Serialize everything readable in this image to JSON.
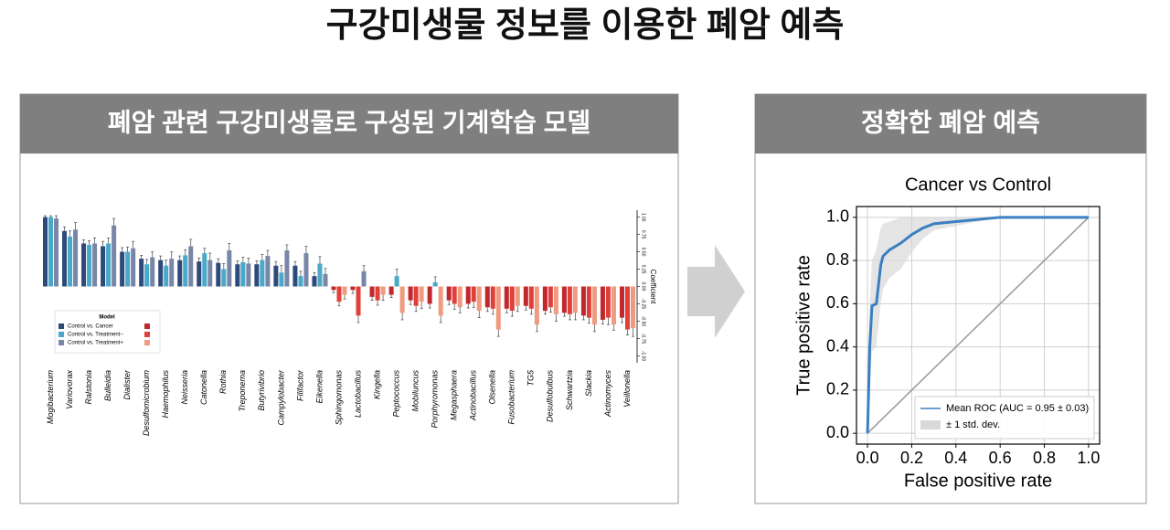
{
  "title": "구강미생물 정보를 이용한 폐암 예측",
  "left_panel_title": "폐암 관련 구강미생물로 구성된 기계학습 모델",
  "right_panel_title": "정확한 폐암 예측",
  "chart_data": [
    {
      "type": "bar",
      "y_label": "Coefficient",
      "y_axis_side": "right",
      "legend_title": "Model",
      "legend": "lower left",
      "categories": [
        "Mogibacterium",
        "Variovorax",
        "Ralstonia",
        "Bulleidia",
        "Dialister",
        "Desulfomicrobium",
        "Haemophilus",
        "Neisseria",
        "Catonella",
        "Rothia",
        "Treponema",
        "Butyrivibrio",
        "Campylobacter",
        "Filifactor",
        "Eikenella",
        "Sphingomonas",
        "Lactobacillus",
        "Kingella",
        "Peptococcus",
        "Mobiluncus",
        "Porphyromonas",
        "Megasphaera",
        "Actinobacillus",
        "Olsenella",
        "Fusobacterium",
        "TG5",
        "Desulfobulbus",
        "Schwartzia",
        "Slackia",
        "Actinomyces",
        "Veillonella"
      ],
      "series": [
        {
          "name": "Control vs. Cancer",
          "color": "#2e4a7a",
          "negative_color": "#c0282d",
          "values": [
            1.0,
            0.8,
            0.62,
            0.58,
            0.5,
            0.4,
            0.38,
            0.38,
            0.36,
            0.34,
            0.32,
            0.32,
            0.3,
            0.3,
            0.15,
            -0.05,
            -0.05,
            -0.15,
            -0.12,
            -0.2,
            -0.25,
            -0.2,
            -0.25,
            -0.3,
            -0.32,
            -0.28,
            -0.35,
            -0.38,
            -0.42,
            -0.48,
            -0.45
          ],
          "errors": [
            0.02,
            0.06,
            0.05,
            0.07,
            0.06,
            0.05,
            0.06,
            0.06,
            0.05,
            0.06,
            0.05,
            0.05,
            0.06,
            0.06,
            0.05,
            0.04,
            0.05,
            0.05,
            0.04,
            0.06,
            0.06,
            0.06,
            0.06,
            0.06,
            0.06,
            0.06,
            0.05,
            0.05,
            0.06,
            0.06,
            0.07
          ]
        },
        {
          "name": "Control vs. Treatment−",
          "color": "#4aa8c8",
          "negative_color": "#e0403a",
          "values": [
            1.0,
            0.72,
            0.6,
            0.62,
            0.5,
            0.32,
            0.3,
            0.45,
            0.48,
            0.25,
            0.35,
            0.38,
            0.2,
            0.15,
            0.33,
            -0.22,
            -0.42,
            -0.2,
            0.15,
            -0.28,
            0.06,
            -0.25,
            -0.22,
            -0.32,
            -0.35,
            -0.32,
            -0.3,
            -0.4,
            -0.45,
            -0.45,
            -0.62
          ],
          "errors": [
            0.02,
            0.08,
            0.06,
            0.08,
            0.07,
            0.07,
            0.08,
            0.08,
            0.07,
            0.08,
            0.07,
            0.08,
            0.1,
            0.07,
            0.1,
            0.06,
            0.1,
            0.07,
            0.1,
            0.08,
            0.08,
            0.08,
            0.08,
            0.08,
            0.08,
            0.08,
            0.07,
            0.08,
            0.08,
            0.1,
            0.08
          ]
        },
        {
          "name": "Control vs. Treatment+",
          "color": "#7a86a8",
          "negative_color": "#f09a80",
          "values": [
            0.98,
            0.82,
            0.62,
            0.88,
            0.55,
            0.42,
            0.4,
            0.58,
            0.38,
            0.52,
            0.33,
            0.44,
            0.52,
            0.48,
            0.18,
            -0.12,
            0.22,
            -0.12,
            -0.38,
            -0.22,
            -0.42,
            -0.3,
            -0.35,
            -0.62,
            -0.28,
            -0.55,
            -0.4,
            -0.38,
            -0.55,
            -0.55,
            -0.6
          ],
          "errors": [
            0.04,
            0.1,
            0.08,
            0.1,
            0.1,
            0.08,
            0.1,
            0.1,
            0.1,
            0.1,
            0.08,
            0.08,
            0.08,
            0.1,
            0.08,
            0.06,
            0.08,
            0.08,
            0.1,
            0.1,
            0.1,
            0.08,
            0.1,
            0.1,
            0.08,
            0.1,
            0.1,
            0.1,
            0.1,
            0.08,
            0.12
          ]
        }
      ],
      "ylim": [
        -1.1,
        1.1
      ],
      "yticks": [
        {
          "value": -1,
          "label": "-1.00"
        },
        -0.75,
        {
          "value": -0.5,
          "label": "-0.50"
        },
        -0.25,
        {
          "value": 0,
          "label": "0.00"
        },
        0.25,
        {
          "value": 0.5,
          "label": "0.50"
        },
        0.75,
        {
          "value": 1,
          "label": "1.00"
        }
      ],
      "grid": false
    },
    {
      "type": "line",
      "title": "Cancer vs Control",
      "x_label": "False positive rate",
      "y_label": "True positive rate",
      "xlim": [
        -0.05,
        1.05
      ],
      "ylim": [
        -0.05,
        1.05
      ],
      "xticks": [
        {
          "value": 0,
          "label": "0.0"
        },
        0.2,
        0.4,
        0.6,
        0.8,
        {
          "value": 1,
          "label": "1.0"
        }
      ],
      "yticks": [
        {
          "value": 0,
          "label": "0.0"
        },
        0.2,
        0.4,
        0.6,
        0.8,
        {
          "value": 1,
          "label": "1.0"
        }
      ],
      "grid": true,
      "legend": "lower right",
      "series": [
        {
          "name": "±  1 std. dev.",
          "kind": "band",
          "color": "#d9d9d9",
          "x": [
            0,
            0.01,
            0.02,
            0.04,
            0.06,
            0.07,
            0.1,
            0.15,
            0.2,
            0.25,
            0.3,
            0.4,
            0.5,
            0.6,
            1.0
          ],
          "upper": [
            0,
            0.6,
            0.8,
            0.85,
            0.95,
            0.97,
            0.98,
            1.0,
            1.0,
            1.0,
            1.0,
            1.0,
            1.0,
            1.0,
            1.0
          ],
          "lower": [
            0,
            0.2,
            0.38,
            0.4,
            0.6,
            0.67,
            0.72,
            0.76,
            0.84,
            0.9,
            0.94,
            0.96,
            0.98,
            1.0,
            1.0
          ]
        },
        {
          "kind": "line",
          "color": "#999999",
          "x": [
            0,
            1
          ],
          "values": [
            0,
            1
          ]
        },
        {
          "name": "Mean ROC (AUC = 0.95 ±  0.03)",
          "kind": "line",
          "color": "#3a7fc0",
          "x": [
            0,
            0.01,
            0.02,
            0.04,
            0.06,
            0.07,
            0.1,
            0.15,
            0.2,
            0.25,
            0.3,
            0.4,
            0.5,
            0.6,
            1.0
          ],
          "values": [
            0,
            0.4,
            0.59,
            0.6,
            0.78,
            0.82,
            0.85,
            0.88,
            0.92,
            0.95,
            0.97,
            0.98,
            0.99,
            1.0,
            1.0
          ]
        }
      ]
    }
  ]
}
